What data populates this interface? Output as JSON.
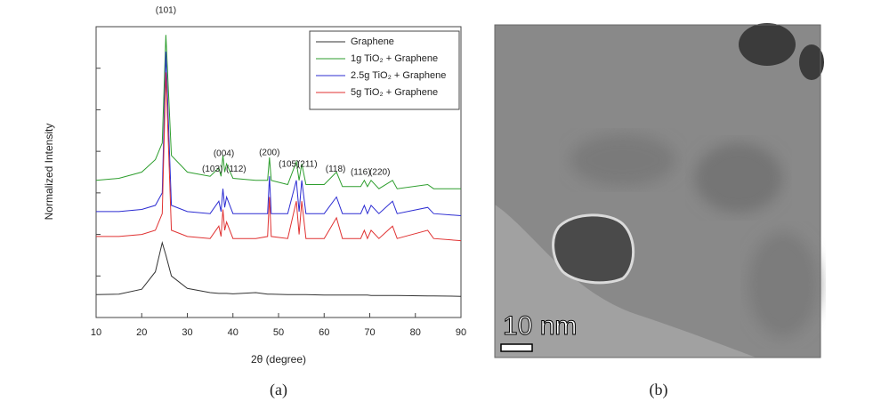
{
  "chart_data": {
    "type": "line",
    "xlabel": "2θ (degree)",
    "ylabel": "Normalized Intensity",
    "xlim": [
      10,
      90
    ],
    "xticks": [
      10,
      20,
      30,
      40,
      50,
      60,
      70,
      80,
      90
    ],
    "ylim": [
      0,
      7
    ],
    "yticks": [
      1,
      2,
      3,
      4,
      5,
      6,
      7
    ],
    "ytick_labels": false,
    "legend": "upper right",
    "x": [
      10,
      15,
      20,
      23,
      24.5,
      25.3,
      26.5,
      30,
      35,
      36.9,
      37.4,
      37.8,
      38.2,
      38.6,
      40,
      45,
      47.6,
      48.0,
      48.4,
      52,
      53.9,
      54.5,
      55.1,
      56,
      60,
      62.7,
      64,
      68,
      68.8,
      69.5,
      70.3,
      72,
      75.0,
      76,
      82.7,
      84,
      90
    ],
    "series": [
      {
        "name": "Graphene",
        "color": "#333333",
        "values": [
          0.55,
          0.56,
          0.68,
          1.1,
          1.8,
          1.5,
          1.0,
          0.7,
          0.6,
          0.58,
          0.58,
          0.58,
          0.58,
          0.58,
          0.57,
          0.6,
          0.56,
          0.56,
          0.56,
          0.55,
          0.55,
          0.55,
          0.55,
          0.55,
          0.54,
          0.54,
          0.54,
          0.54,
          0.54,
          0.54,
          0.53,
          0.53,
          0.53,
          0.53,
          0.52,
          0.52,
          0.51
        ]
      },
      {
        "name": "1g TiO₂ + Graphene",
        "color": "#2e9e2e",
        "values": [
          3.3,
          3.35,
          3.5,
          3.8,
          4.2,
          6.8,
          3.9,
          3.5,
          3.4,
          3.6,
          3.4,
          3.9,
          3.5,
          3.7,
          3.35,
          3.3,
          3.3,
          3.85,
          3.3,
          3.2,
          3.75,
          3.3,
          3.7,
          3.2,
          3.2,
          3.5,
          3.15,
          3.15,
          3.3,
          3.15,
          3.3,
          3.1,
          3.3,
          3.1,
          3.2,
          3.1,
          3.1
        ]
      },
      {
        "name": "2.5g TiO₂ + Graphene",
        "color": "#2c2cd2",
        "values": [
          2.55,
          2.55,
          2.6,
          2.7,
          3.0,
          6.4,
          2.7,
          2.55,
          2.5,
          2.8,
          2.55,
          3.1,
          2.65,
          2.9,
          2.5,
          2.5,
          2.5,
          3.4,
          2.5,
          2.5,
          3.3,
          2.55,
          3.3,
          2.5,
          2.5,
          2.9,
          2.5,
          2.5,
          2.7,
          2.5,
          2.7,
          2.5,
          2.8,
          2.5,
          2.65,
          2.5,
          2.45
        ]
      },
      {
        "name": "5g TiO₂ + Graphene",
        "color": "#e03232",
        "values": [
          1.95,
          1.95,
          2.0,
          2.1,
          2.5,
          5.9,
          2.1,
          1.95,
          1.9,
          2.2,
          1.95,
          2.6,
          2.1,
          2.3,
          1.9,
          1.9,
          1.95,
          2.9,
          1.95,
          1.9,
          2.8,
          2.0,
          2.8,
          1.9,
          1.9,
          2.4,
          1.9,
          1.9,
          2.1,
          1.9,
          2.1,
          1.9,
          2.2,
          1.9,
          2.1,
          1.9,
          1.85
        ]
      }
    ],
    "annotations": [
      {
        "text": "(101)",
        "x": 25.3,
        "y": 7.39
      },
      {
        "text": "(004)",
        "x": 38,
        "y": 3.94
      },
      {
        "text": "(103)",
        "x": 35.5,
        "y": 3.57
      },
      {
        "text": "(112)",
        "x": 40.7,
        "y": 3.57
      },
      {
        "text": "(200)",
        "x": 48,
        "y": 3.96
      },
      {
        "text": "(105)",
        "x": 52.3,
        "y": 3.68
      },
      {
        "text": "(211)",
        "x": 56.3,
        "y": 3.68
      },
      {
        "text": "(118)",
        "x": 62.5,
        "y": 3.57
      },
      {
        "text": "(116)",
        "x": 68,
        "y": 3.49
      },
      {
        "text": "(220)",
        "x": 72.2,
        "y": 3.49
      }
    ],
    "caption": "(a)"
  },
  "image": {
    "scale_bar": "10 nm",
    "caption": "(b)"
  }
}
